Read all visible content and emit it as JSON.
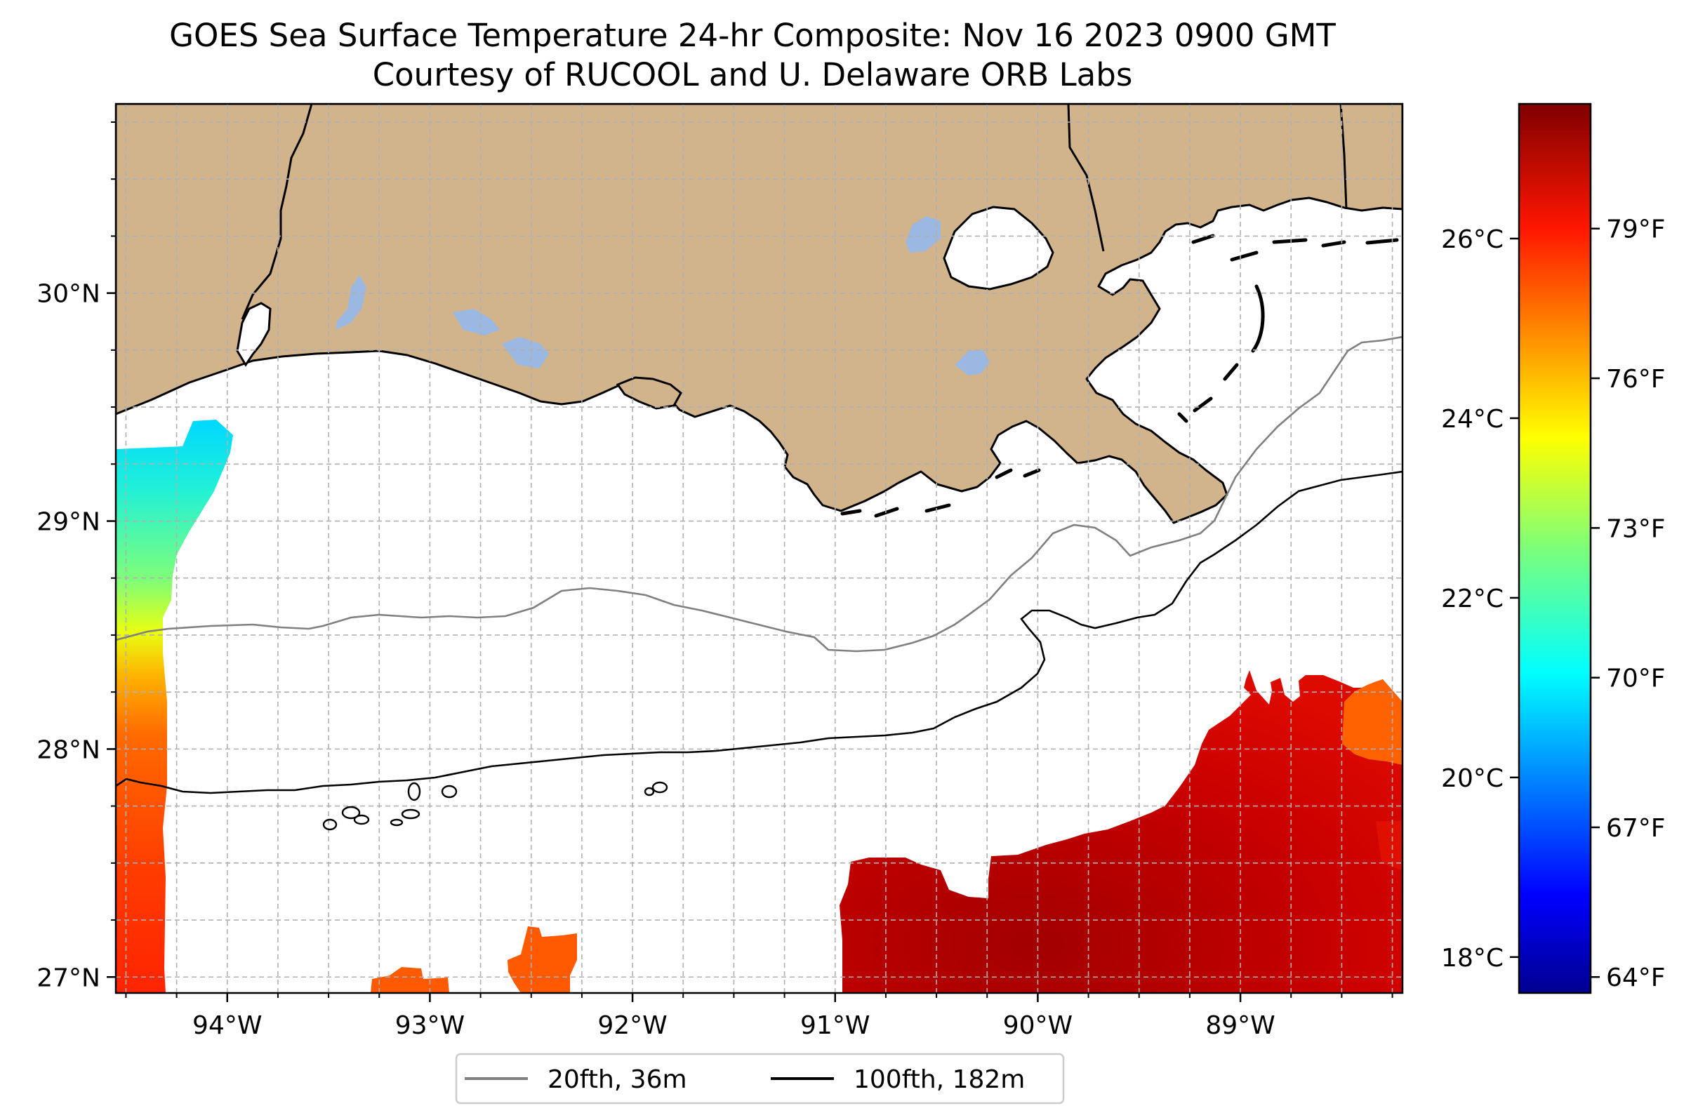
{
  "title": {
    "line1": "GOES Sea Surface Temperature 24-hr Composite: Nov 16 2023 0900 GMT",
    "line2": "Courtesy of RUCOOL and U. Delaware ORB Labs"
  },
  "map": {
    "region": "Northern Gulf of Mexico, Louisiana coast",
    "lon_range": [
      -94.55,
      -88.2
    ],
    "lat_range": [
      26.93,
      30.83
    ],
    "lon_ticks": [
      {
        "value": -94,
        "label": "94°W"
      },
      {
        "value": -93,
        "label": "93°W"
      },
      {
        "value": -92,
        "label": "92°W"
      },
      {
        "value": -91,
        "label": "91°W"
      },
      {
        "value": -90,
        "label": "90°W"
      },
      {
        "value": -89,
        "label": "89°W"
      }
    ],
    "lat_ticks": [
      {
        "value": 27,
        "label": "27°N"
      },
      {
        "value": 28,
        "label": "28°N"
      },
      {
        "value": 29,
        "label": "29°N"
      },
      {
        "value": 30,
        "label": "30°N"
      }
    ],
    "gridlines": true,
    "colors": {
      "land": "#d2b48c",
      "lakes": "#9ab8e2",
      "ocean": "#ffffff",
      "grid": "#b0b0b0",
      "contour_20fth": "#808080",
      "contour_100fth": "#000000"
    }
  },
  "legend": {
    "placement": "below map",
    "items": [
      {
        "label": "20fth, 36m",
        "color": "#808080"
      },
      {
        "label": "100fth, 182m",
        "color": "#000000"
      }
    ]
  },
  "colorbar": {
    "colormap": "jet",
    "celsius_range": [
      17.6,
      27.5
    ],
    "celsius_ticks": [
      {
        "value": 18,
        "label": "18°C"
      },
      {
        "value": 20,
        "label": "20°C"
      },
      {
        "value": 22,
        "label": "22°C"
      },
      {
        "value": 24,
        "label": "24°C"
      },
      {
        "value": 26,
        "label": "26°C"
      }
    ],
    "fahrenheit_ticks": [
      {
        "value": 64,
        "label": "64°F"
      },
      {
        "value": 67,
        "label": "67°F"
      },
      {
        "value": 70,
        "label": "70°F"
      },
      {
        "value": 73,
        "label": "73°F"
      },
      {
        "value": 76,
        "label": "76°F"
      },
      {
        "value": 79,
        "label": "79°F"
      }
    ]
  }
}
